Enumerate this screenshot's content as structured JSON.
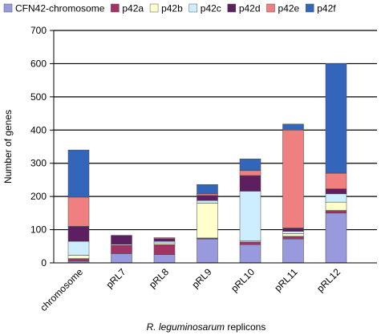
{
  "chart_data": {
    "type": "bar",
    "stacked": true,
    "xlabel_italic": "R. leguminosarum",
    "xlabel_rest": " replicons",
    "ylabel": "Number of genes",
    "ylim": [
      0,
      700
    ],
    "yticks": [
      0,
      100,
      200,
      300,
      400,
      500,
      600,
      700
    ],
    "grid": true,
    "legend_position": "top",
    "categories": [
      "chromosome",
      "pRL7",
      "pRL8",
      "pRL9",
      "pRL10",
      "pRL11",
      "pRL12"
    ],
    "series": [
      {
        "name": "CFN42-chromosome",
        "color": "#9999dd",
        "values": [
          5,
          28,
          25,
          72,
          55,
          72,
          150
        ]
      },
      {
        "name": "p42a",
        "color": "#a33366",
        "values": [
          8,
          25,
          30,
          3,
          8,
          8,
          8
        ]
      },
      {
        "name": "p42b",
        "color": "#ffffcc",
        "values": [
          10,
          0,
          5,
          105,
          3,
          8,
          25
        ]
      },
      {
        "name": "p42c",
        "color": "#cceeff",
        "values": [
          42,
          3,
          5,
          8,
          150,
          7,
          25
        ]
      },
      {
        "name": "p42d",
        "color": "#5c2060",
        "values": [
          45,
          27,
          8,
          15,
          47,
          10,
          15
        ]
      },
      {
        "name": "p42e",
        "color": "#f08080",
        "values": [
          88,
          0,
          3,
          5,
          15,
          295,
          47
        ]
      },
      {
        "name": "p42f",
        "color": "#3366bb",
        "values": [
          142,
          0,
          0,
          28,
          35,
          18,
          330
        ]
      }
    ]
  }
}
